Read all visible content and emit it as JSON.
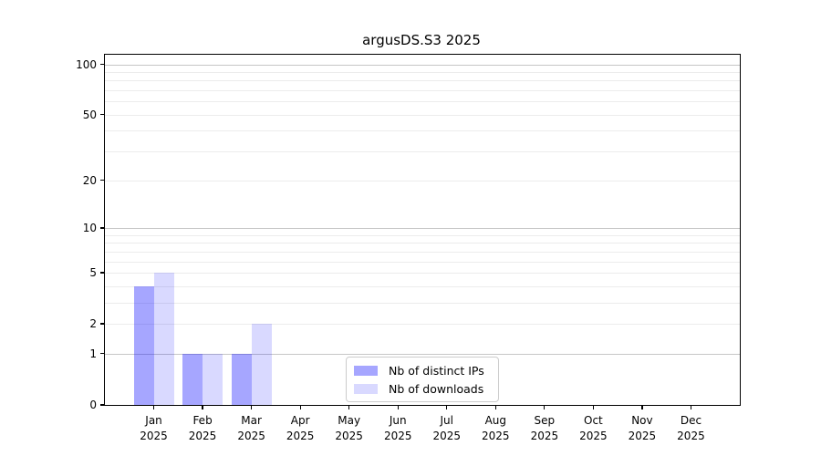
{
  "chart_data": {
    "type": "bar",
    "title": "argusDS.S3 2025",
    "categories": [
      "Jan",
      "Feb",
      "Mar",
      "Apr",
      "May",
      "Jun",
      "Jul",
      "Aug",
      "Sep",
      "Oct",
      "Nov",
      "Dec"
    ],
    "year": "2025",
    "series": [
      {
        "name": "Nb of distinct IPs",
        "color": "rgba(0,0,255,0.35)",
        "values": [
          4,
          1,
          1,
          0,
          0,
          0,
          0,
          0,
          0,
          0,
          0,
          0
        ]
      },
      {
        "name": "Nb of downloads",
        "color": "rgba(0,0,255,0.15)",
        "values": [
          5,
          1,
          2,
          0,
          0,
          0,
          0,
          0,
          0,
          0,
          0,
          0
        ]
      }
    ],
    "y_axis": {
      "scale": "log1p",
      "ticks": [
        0,
        1,
        2,
        5,
        10,
        20,
        50,
        100
      ],
      "max": 114
    },
    "grid": {
      "major": [
        1,
        10,
        100
      ],
      "minor": [
        2,
        3,
        4,
        5,
        6,
        7,
        8,
        9,
        20,
        30,
        40,
        50,
        60,
        70,
        80,
        90
      ]
    },
    "legend_position": "lower center",
    "ylim": [
      0,
      114
    ]
  },
  "colors": {
    "background": "#ffffff",
    "spine": "#000000",
    "major_grid": "#c6c6c6",
    "minor_grid": "#ececec",
    "legend_border": "#cccccc",
    "series_dark": "#a6a6ff",
    "series_light": "#d9d9ff"
  }
}
